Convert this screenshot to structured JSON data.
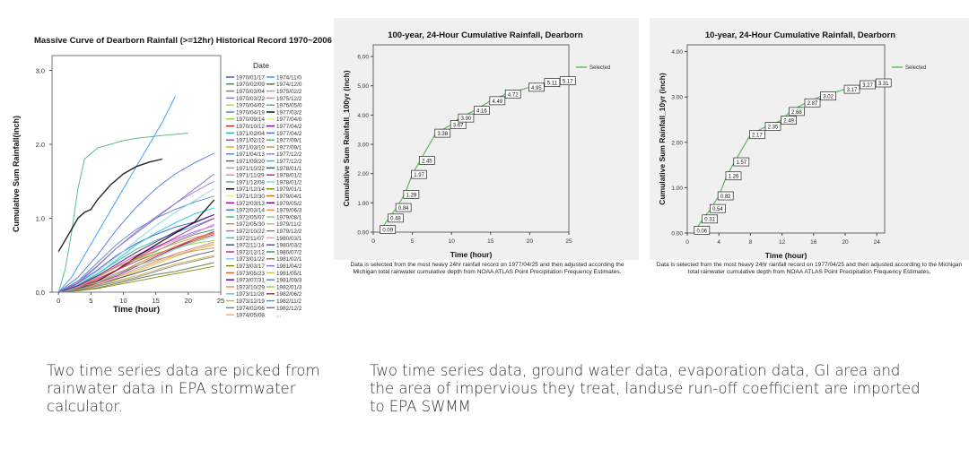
{
  "chart_data": [
    {
      "type": "line",
      "title": "Massive Curve of Dearborn Rainfall (>=12hr) Historical Record 1970~2006",
      "xlabel": "Time (hour)",
      "ylabel": "Cumulative Sum Rainfall(inch)",
      "xlim": [
        -1,
        25
      ],
      "ylim": [
        0,
        3.2
      ],
      "xticks": [
        "0",
        "5",
        "10",
        "15",
        "20",
        "25"
      ],
      "yticks": [
        "0.0",
        "1.0",
        "2.0",
        "3.0"
      ],
      "grid": false,
      "legend_title": "Date",
      "legend_placement": "right",
      "legend_col1": [
        "1970/01/17",
        "1970/02/09",
        "1970/03/04",
        "1970/03/22",
        "1970/04/02",
        "1970/04/19",
        "1970/09/14",
        "1970/10/12",
        "1971/02/04",
        "1971/02/12",
        "1971/03/10",
        "1971/04/13",
        "1971/09/20",
        "1971/10/22",
        "1971/11/29",
        "1971/12/08",
        "1971/12/14",
        "1971/12/30",
        "1972/03/13",
        "1972/03/14",
        "1972/05/07",
        "1972/05/30",
        "1972/10/22",
        "1972/11/07",
        "1972/11/14",
        "1972/12/12",
        "1973/01/22",
        "1973/03/17",
        "1973/05/23",
        "1973/07/31",
        "1973/10/29",
        "1973/11/28",
        "1973/12/19",
        "1974/02/06",
        "1974/05/08"
      ],
      "legend_col2": [
        "1974/11/0",
        "1974/12/0",
        "1975/02/2",
        "1975/12/2",
        "1976/05/0",
        "1977/03/2",
        "1977/04/0",
        "1977/04/2",
        "1977/04/2",
        "1977/09/1",
        "1977/09/1",
        "1977/12/2",
        "1977/12/2",
        "1978/01/1",
        "1978/01/2",
        "1978/01/2",
        "1979/01/1",
        "1979/04/1",
        "1979/05/2",
        "1979/06/3",
        "1979/08/1",
        "1979/11/2",
        "1979/12/2",
        "1980/03/1",
        "1980/03/2",
        "1980/07/2",
        "1981/02/1",
        "1981/04/2",
        "1981/05/1",
        "1981/09/3",
        "1982/01/3",
        "1982/06/2",
        "1982/11/2",
        "1982/12/2",
        "..."
      ],
      "legend_colors": [
        "#3b4cc0",
        "#2e8b57",
        "#8b7355",
        "#7b68ee",
        "#cccc33",
        "#4682b4",
        "#9acd32",
        "#b22222",
        "#20b2aa",
        "#6a5acd",
        "#daa520",
        "#1e90ff",
        "#556b2f",
        "#bc8f8f",
        "#ff69b4",
        "#5f9ea0",
        "#000000",
        "#f0e68c",
        "#8b008b",
        "#4169e1",
        "#3cb371",
        "#cd853f",
        "#9370db",
        "#00ced1",
        "#2f4f4f",
        "#c71585",
        "#87ceeb",
        "#808000",
        "#d2691e",
        "#4b0082",
        "#ff7f50",
        "#66cdaa",
        "#bdb76b",
        "#708090",
        "#ffa07a"
      ],
      "series": [
        {
          "color": "#7b68ee",
          "x": [
            0,
            3,
            6,
            9,
            12,
            15,
            18,
            21,
            24
          ],
          "y": [
            0.0,
            0.08,
            0.2,
            0.35,
            0.5,
            0.62,
            0.72,
            0.82,
            0.9
          ]
        },
        {
          "color": "#2e8b57",
          "x": [
            0,
            3,
            6,
            9,
            12,
            15,
            18,
            21,
            24
          ],
          "y": [
            0.0,
            0.05,
            0.15,
            0.3,
            0.45,
            0.55,
            0.68,
            0.78,
            0.85
          ]
        },
        {
          "color": "#3b4cc0",
          "x": [
            0,
            3,
            6,
            9,
            12,
            15,
            18,
            21,
            24
          ],
          "y": [
            0.0,
            0.12,
            0.3,
            0.5,
            0.66,
            0.78,
            0.88,
            0.95,
            1.05
          ]
        },
        {
          "color": "#cccc33",
          "x": [
            0,
            3,
            6,
            9,
            12,
            15,
            18,
            21,
            24
          ],
          "y": [
            0.0,
            0.04,
            0.1,
            0.18,
            0.28,
            0.38,
            0.48,
            0.58,
            0.66
          ]
        },
        {
          "color": "#b22222",
          "x": [
            0,
            3,
            6,
            9,
            12,
            15,
            18,
            21,
            24
          ],
          "y": [
            0.0,
            0.06,
            0.18,
            0.3,
            0.42,
            0.52,
            0.6,
            0.7,
            0.78
          ]
        },
        {
          "color": "#20b2aa",
          "x": [
            0,
            3,
            6,
            9,
            12,
            15,
            18,
            21,
            24
          ],
          "y": [
            0.0,
            0.1,
            0.25,
            0.42,
            0.58,
            0.7,
            0.8,
            0.9,
            1.0
          ]
        },
        {
          "color": "#daa520",
          "x": [
            0,
            3,
            6,
            9,
            12,
            15,
            18,
            21,
            24
          ],
          "y": [
            0.0,
            0.03,
            0.08,
            0.16,
            0.22,
            0.3,
            0.38,
            0.44,
            0.5
          ]
        },
        {
          "color": "#ff69b4",
          "x": [
            0,
            3,
            6,
            9,
            12,
            15,
            18,
            21,
            24
          ],
          "y": [
            0.0,
            0.07,
            0.2,
            0.36,
            0.5,
            0.6,
            0.7,
            0.8,
            0.92
          ]
        },
        {
          "color": "#556b2f",
          "x": [
            0,
            3,
            6,
            9,
            12,
            15,
            18,
            21,
            24
          ],
          "y": [
            0.0,
            0.02,
            0.06,
            0.12,
            0.18,
            0.24,
            0.28,
            0.34,
            0.4
          ]
        },
        {
          "color": "#4682b4",
          "x": [
            0,
            3,
            6,
            9,
            12,
            15,
            18,
            21,
            24
          ],
          "y": [
            0.0,
            0.15,
            0.4,
            0.65,
            0.85,
            1.0,
            1.12,
            1.22,
            1.3
          ]
        },
        {
          "color": "#9acd32",
          "x": [
            0,
            3,
            6,
            9,
            12,
            15,
            18,
            21,
            24
          ],
          "y": [
            0.0,
            0.1,
            0.22,
            0.34,
            0.44,
            0.52,
            0.6,
            0.66,
            0.7
          ]
        },
        {
          "color": "#8b008b",
          "x": [
            0,
            3,
            6,
            9,
            12,
            15,
            18,
            21,
            24
          ],
          "y": [
            0.0,
            0.05,
            0.12,
            0.22,
            0.35,
            0.48,
            0.6,
            0.72,
            0.82
          ]
        },
        {
          "color": "#cd853f",
          "x": [
            0,
            3,
            6,
            9,
            12,
            15,
            18,
            21,
            24
          ],
          "y": [
            0.0,
            0.04,
            0.14,
            0.26,
            0.36,
            0.44,
            0.5,
            0.56,
            0.6
          ]
        },
        {
          "color": "#00ced1",
          "x": [
            0,
            3,
            6,
            9,
            12,
            15,
            18,
            21,
            24
          ],
          "y": [
            0.0,
            0.08,
            0.24,
            0.44,
            0.64,
            0.8,
            0.94,
            1.06,
            1.14
          ]
        },
        {
          "color": "#1e90ff",
          "x": [
            0,
            2,
            4,
            6,
            8,
            10,
            12,
            14,
            16,
            18
          ],
          "y": [
            0.0,
            0.2,
            0.5,
            0.8,
            1.1,
            1.4,
            1.7,
            2.0,
            2.3,
            2.65
          ]
        },
        {
          "color": "#3cb371",
          "x": [
            0,
            1,
            2,
            3,
            4,
            6,
            8,
            10,
            12,
            14,
            16,
            20
          ],
          "y": [
            0.0,
            0.3,
            0.8,
            1.4,
            1.8,
            1.95,
            2.0,
            2.05,
            2.08,
            2.1,
            2.12,
            2.15
          ]
        },
        {
          "color": "#000000",
          "x": [
            0,
            1,
            2,
            3,
            4,
            5,
            6,
            8,
            10,
            12,
            14,
            16
          ],
          "y": [
            0.55,
            0.7,
            0.85,
            1.0,
            1.08,
            1.12,
            1.25,
            1.45,
            1.6,
            1.7,
            1.76,
            1.8
          ]
        },
        {
          "color": "#000000",
          "x": [
            0,
            3,
            6,
            9,
            12,
            15,
            18,
            21,
            24
          ],
          "y": [
            0.0,
            0.05,
            0.15,
            0.3,
            0.48,
            0.64,
            0.8,
            0.95,
            1.25
          ]
        },
        {
          "color": "#6a5acd",
          "x": [
            0,
            3,
            6,
            9,
            12,
            15,
            18,
            21,
            24
          ],
          "y": [
            0.0,
            0.12,
            0.35,
            0.6,
            0.8,
            1.0,
            1.2,
            1.4,
            1.6
          ]
        },
        {
          "color": "#c71585",
          "x": [
            0,
            3,
            6,
            9,
            12,
            15,
            18,
            21,
            24
          ],
          "y": [
            0.0,
            0.06,
            0.16,
            0.3,
            0.46,
            0.6,
            0.74,
            0.88,
            1.0
          ]
        },
        {
          "color": "#808000",
          "x": [
            0,
            3,
            6,
            9,
            12,
            15,
            18,
            21,
            24
          ],
          "y": [
            0.0,
            0.02,
            0.05,
            0.1,
            0.15,
            0.2,
            0.25,
            0.3,
            0.35
          ]
        },
        {
          "color": "#bc8f8f",
          "x": [
            0,
            3,
            6,
            9,
            12,
            15,
            18,
            21,
            24
          ],
          "y": [
            0.0,
            0.03,
            0.09,
            0.2,
            0.32,
            0.42,
            0.52,
            0.6,
            0.68
          ]
        },
        {
          "color": "#4169e1",
          "x": [
            0,
            3,
            6,
            9,
            12,
            15,
            18,
            21,
            24
          ],
          "y": [
            0.0,
            0.2,
            0.5,
            0.85,
            1.15,
            1.4,
            1.6,
            1.75,
            1.88
          ]
        },
        {
          "color": "#87ceeb",
          "x": [
            0,
            3,
            6,
            9,
            12,
            15,
            18,
            21,
            24
          ],
          "y": [
            0.0,
            0.1,
            0.28,
            0.48,
            0.7,
            0.9,
            1.08,
            1.24,
            1.4
          ]
        },
        {
          "color": "#d2691e",
          "x": [
            0,
            3,
            6,
            9,
            12,
            15,
            18,
            21,
            24
          ],
          "y": [
            0.0,
            0.04,
            0.12,
            0.24,
            0.38,
            0.5,
            0.62,
            0.72,
            0.8
          ]
        },
        {
          "color": "#ff7f50",
          "x": [
            0,
            3,
            6,
            9,
            12,
            15,
            18,
            21,
            24
          ],
          "y": [
            0.0,
            0.08,
            0.2,
            0.34,
            0.46,
            0.56,
            0.66,
            0.74,
            0.8
          ]
        },
        {
          "color": "#2f4f4f",
          "x": [
            0,
            3,
            6,
            9,
            12,
            15,
            18,
            21,
            24
          ],
          "y": [
            0.0,
            0.05,
            0.1,
            0.18,
            0.26,
            0.34,
            0.42,
            0.5,
            0.56
          ]
        },
        {
          "color": "#66cdaa",
          "x": [
            0,
            3,
            6,
            9,
            12,
            15,
            18,
            21,
            24
          ],
          "y": [
            0.0,
            0.06,
            0.14,
            0.24,
            0.36,
            0.46,
            0.58,
            0.68,
            0.76
          ]
        },
        {
          "color": "#4b0082",
          "x": [
            0,
            3,
            6,
            9,
            12,
            15,
            18,
            21,
            24
          ],
          "y": [
            0.0,
            0.09,
            0.22,
            0.38,
            0.54,
            0.68,
            0.82,
            0.94,
            1.05
          ]
        },
        {
          "color": "#ffa07a",
          "x": [
            0,
            3,
            6,
            9,
            12,
            15,
            18,
            21,
            24
          ],
          "y": [
            0.0,
            0.04,
            0.1,
            0.2,
            0.3,
            0.4,
            0.5,
            0.58,
            0.64
          ]
        },
        {
          "color": "#708090",
          "x": [
            0,
            3,
            6,
            9,
            12,
            15,
            18,
            21,
            24
          ],
          "y": [
            0.0,
            0.03,
            0.08,
            0.14,
            0.2,
            0.28,
            0.36,
            0.42,
            0.48
          ]
        },
        {
          "color": "#9370db",
          "x": [
            0,
            3,
            6,
            9,
            12,
            15,
            18,
            21,
            24
          ],
          "y": [
            0.0,
            0.14,
            0.36,
            0.6,
            0.82,
            1.02,
            1.2,
            1.36,
            1.5
          ]
        }
      ]
    },
    {
      "type": "line",
      "title": "100-year, 24-Hour Cumulative Rainfall, Dearborn",
      "xlabel": "Time (hour)",
      "ylabel": "Cumulative Sum Rainfall_100yr (inch)",
      "xlim": [
        0,
        25
      ],
      "ylim": [
        0,
        6.4
      ],
      "xticks": [
        0,
        5,
        10,
        15,
        20,
        25
      ],
      "yticks": [
        "0.00",
        "1.00",
        "2.00",
        "3.00",
        "4.00",
        "5.00",
        "6.00"
      ],
      "grid": false,
      "background": "#f0f0f0",
      "legend": [
        "Selected"
      ],
      "legend_placement": "top-right",
      "line_color": "#5cb85c",
      "x": [
        1,
        2,
        3,
        4,
        5,
        6,
        8,
        10,
        11,
        13,
        15,
        17,
        20,
        22,
        24
      ],
      "y": [
        0.09,
        0.48,
        0.84,
        1.29,
        1.97,
        2.45,
        3.38,
        3.67,
        3.9,
        4.16,
        4.49,
        4.72,
        4.95,
        5.11,
        5.17
      ],
      "data_labels": [
        "0.09",
        "0.48",
        "0.84",
        "1.29",
        "1.97",
        "2.45",
        "3.38",
        "3.67",
        "3.90",
        "4.16",
        "4.49",
        "4.72",
        "4.95",
        "5.11",
        "5.17"
      ],
      "note": "Data is selected from the most heavy 24hr rainfall record on 1977/04/25 and then adjusted according the Michigan total rainwater cumulative depth from NOAA ATLAS Point Precipitation Frequency Estimates."
    },
    {
      "type": "line",
      "title": "10-year, 24-Hour Cumulative Rainfall, Dearborn",
      "xlabel": "Time (hour)",
      "ylabel": "Cumulative Sum Rainfall_10yr (inch)",
      "xlim": [
        0,
        25
      ],
      "ylim": [
        0,
        4.15
      ],
      "xticks": [
        0,
        4,
        8,
        12,
        16,
        20,
        24
      ],
      "yticks": [
        "0.00",
        "1.00",
        "2.00",
        "3.00",
        "4.00"
      ],
      "grid": false,
      "background": "#f0f0f0",
      "legend": [
        "Selected"
      ],
      "legend_placement": "top-right",
      "line_color": "#5cb85c",
      "x": [
        1,
        2,
        3,
        4,
        5,
        6,
        8,
        10,
        12,
        13,
        15,
        17,
        20,
        22,
        24
      ],
      "y": [
        0.06,
        0.31,
        0.54,
        0.82,
        1.26,
        1.57,
        2.17,
        2.35,
        2.49,
        2.68,
        2.87,
        3.02,
        3.17,
        3.27,
        3.31
      ],
      "data_labels": [
        "0.06",
        "0.31",
        "0.54",
        "0.82",
        "1.26",
        "1.57",
        "2.17",
        "2.35",
        "2.49",
        "2.68",
        "2.87",
        "3.02",
        "3.17",
        "3.27",
        "3.31"
      ],
      "note": "Data is selected from the most heavy 24hr rainfall record on 1977/04/25 and then adjusted according to the Michigan total rainwater cumulative depth from NOAA ATLAS Point Precipitation Frequency Estimates."
    }
  ],
  "captions": {
    "left": "Two time series data are picked from rainwater data in EPA stormwater calculator.",
    "right": "Two time series data, ground water data, evaporation data, GI area and the area of impervious they treat, landuse run-off coefficient are imported to EPA SWMM"
  }
}
